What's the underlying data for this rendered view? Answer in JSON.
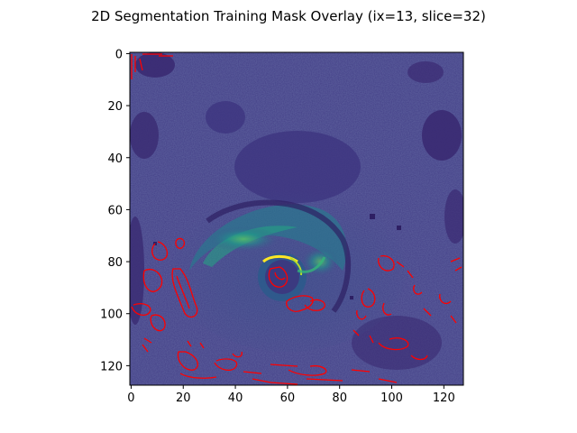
{
  "chart_data": {
    "type": "heatmap",
    "title": "2D Segmentation Training Mask Overlay (ix=13, slice=32)",
    "xlabel": "",
    "ylabel": "",
    "image_size": [
      128,
      128
    ],
    "xlim": [
      -0.5,
      127.5
    ],
    "ylim": [
      127.5,
      -0.5
    ],
    "x_ticks": [
      0,
      20,
      40,
      60,
      80,
      100,
      120
    ],
    "y_ticks": [
      0,
      20,
      40,
      60,
      80,
      100,
      120
    ],
    "colormap": "viridis",
    "mask_contour_color": "#ff0000",
    "grid": false,
    "legend": "none"
  },
  "colors": {
    "background_low": "#440154",
    "background_mid": "#3b528b",
    "teal": "#21918c",
    "green": "#5ec962",
    "bright": "#fde725",
    "mask": "#ff0000"
  }
}
